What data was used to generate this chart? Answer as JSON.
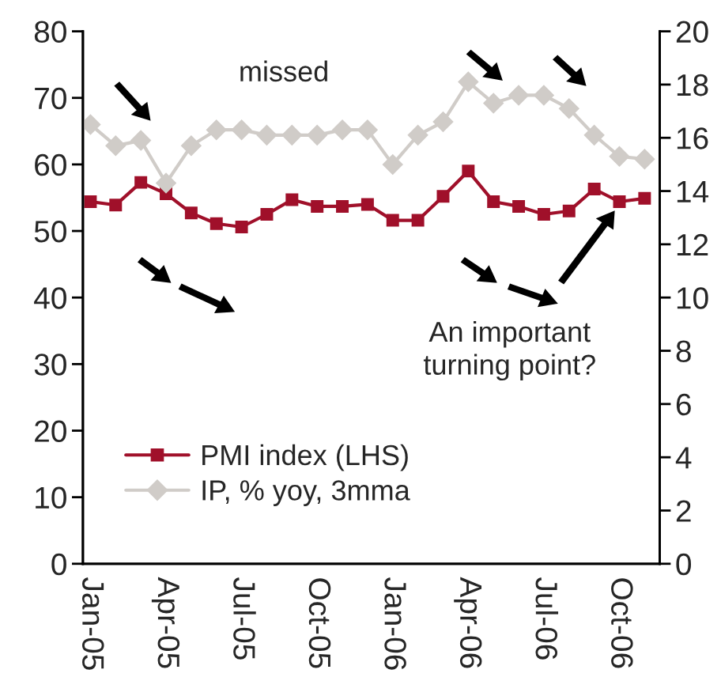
{
  "chart_data": {
    "type": "line",
    "categories": [
      "Jan-05",
      null,
      null,
      "Apr-05",
      null,
      null,
      "Jul-05",
      null,
      null,
      "Oct-05",
      null,
      null,
      "Jan-06",
      null,
      null,
      "Apr-06",
      null,
      null,
      "Jul-06",
      null,
      null,
      "Oct-06",
      null
    ],
    "series": [
      {
        "name": "PMI index (LHS)",
        "color": "#a0102a",
        "marker": "square",
        "values": [
          54.4,
          53.9,
          57.3,
          55.6,
          52.7,
          51.1,
          50.6,
          52.5,
          54.7,
          53.7,
          53.7,
          54.0,
          51.6,
          51.6,
          55.2,
          59.0,
          54.4,
          53.7,
          52.5,
          53.0,
          56.3,
          54.4,
          54.9
        ]
      },
      {
        "name": "IP, % yoy, 3mma",
        "color": "#d0ccc8",
        "marker": "diamond",
        "axis": "y2",
        "values": [
          16.5,
          15.7,
          15.9,
          14.3,
          15.7,
          16.3,
          16.3,
          16.1,
          16.1,
          16.1,
          16.3,
          16.3,
          15.0,
          16.1,
          16.6,
          18.1,
          17.3,
          17.6,
          17.6,
          17.1,
          16.1,
          15.3,
          15.2
        ]
      }
    ],
    "ylim": [
      0,
      80
    ],
    "yticks": [
      0,
      10,
      20,
      30,
      40,
      50,
      60,
      70,
      80
    ],
    "y2lim": [
      0,
      20
    ],
    "y2ticks": [
      0,
      2,
      4,
      6,
      8,
      10,
      12,
      14,
      16,
      18,
      20
    ],
    "annotations": [
      {
        "text": "missed"
      },
      "An important\nturning point?"
    ],
    "legend": "bottom left",
    "grid": false,
    "line_style": "solid"
  }
}
